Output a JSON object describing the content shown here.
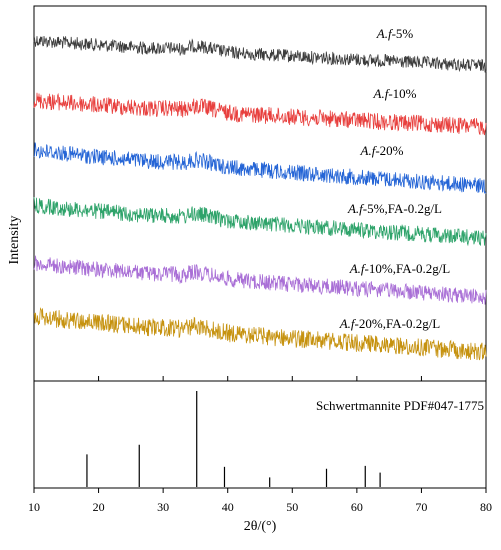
{
  "chart_data": {
    "type": "line",
    "xlabel": "2θ/(°)",
    "ylabel": "Intensity",
    "xlim": [
      10,
      80
    ],
    "x_ticks": [
      "10",
      "20",
      "30",
      "40",
      "50",
      "60",
      "70",
      "80"
    ],
    "grid": false,
    "series": [
      {
        "name": "A.f-5%",
        "label_prefix": "A.f",
        "label_suffix": "-5%",
        "color": "#3c3c3c",
        "noise": 6.5
      },
      {
        "name": "A.f-10%",
        "label_prefix": "A.f",
        "label_suffix": "-10%",
        "color": "#e8403e",
        "noise": 8.5
      },
      {
        "name": "A.f-20%",
        "label_prefix": "A.f",
        "label_suffix": "-20%",
        "color": "#2565d6",
        "noise": 8
      },
      {
        "name": "A.f-5%,FA-0.2g/L",
        "label_prefix": "A.f",
        "label_suffix": "-5%,FA-0.2g/L",
        "color": "#2ea36a",
        "noise": 8
      },
      {
        "name": "A.f-10%,FA-0.2g/L",
        "label_prefix": "A.f",
        "label_suffix": "-10%,FA-0.2g/L",
        "color": "#a96fd6",
        "noise": 8
      },
      {
        "name": "A.f-20%,FA-0.2g/L",
        "label_prefix": "A.f",
        "label_suffix": "-20%,FA-0.2g/L",
        "color": "#c6920f",
        "noise": 9
      }
    ],
    "reference": {
      "title": "Schwertmannite  PDF#047-1775",
      "peaks": [
        {
          "x": 18.2,
          "intensity": 34
        },
        {
          "x": 26.3,
          "intensity": 44
        },
        {
          "x": 35.2,
          "intensity": 100
        },
        {
          "x": 39.5,
          "intensity": 21
        },
        {
          "x": 46.5,
          "intensity": 10
        },
        {
          "x": 55.3,
          "intensity": 19
        },
        {
          "x": 61.3,
          "intensity": 22
        },
        {
          "x": 63.6,
          "intensity": 15
        }
      ]
    }
  }
}
